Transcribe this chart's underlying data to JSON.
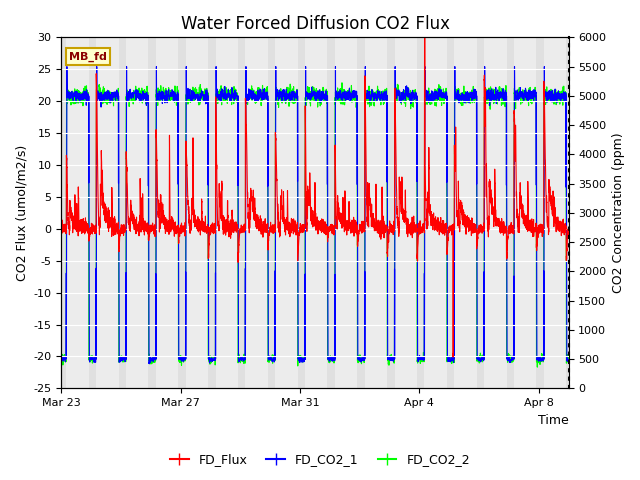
{
  "title": "Water Forced Diffusion CO2 Flux",
  "ylabel_left": "CO2 Flux (umol/m2/s)",
  "ylabel_right": "CO2 Concentration (ppm)",
  "xlabel": "Time",
  "ylim_left": [
    -25,
    30
  ],
  "ylim_right": [
    0,
    6000
  ],
  "xtick_labels": [
    "Mar 23",
    "Mar 27",
    "Mar 31",
    "Apr 4",
    "Apr 8"
  ],
  "legend_labels": [
    "FD_Flux",
    "FD_CO2_1",
    "FD_CO2_2"
  ],
  "legend_colors": [
    "red",
    "blue",
    "lime"
  ],
  "mb_fd_label": "MB_fd",
  "background_color": "#ffffff",
  "plot_bg_color": "#e0e0e0",
  "band_color": "#ececec",
  "title_fontsize": 12,
  "label_fontsize": 9,
  "tick_fontsize": 8,
  "yticks_left": [
    -25,
    -20,
    -15,
    -10,
    -5,
    0,
    5,
    10,
    15,
    20,
    25,
    30
  ],
  "yticks_right": [
    0,
    500,
    1000,
    1500,
    2000,
    2500,
    3000,
    3500,
    4000,
    4500,
    5000,
    5500,
    6000
  ]
}
